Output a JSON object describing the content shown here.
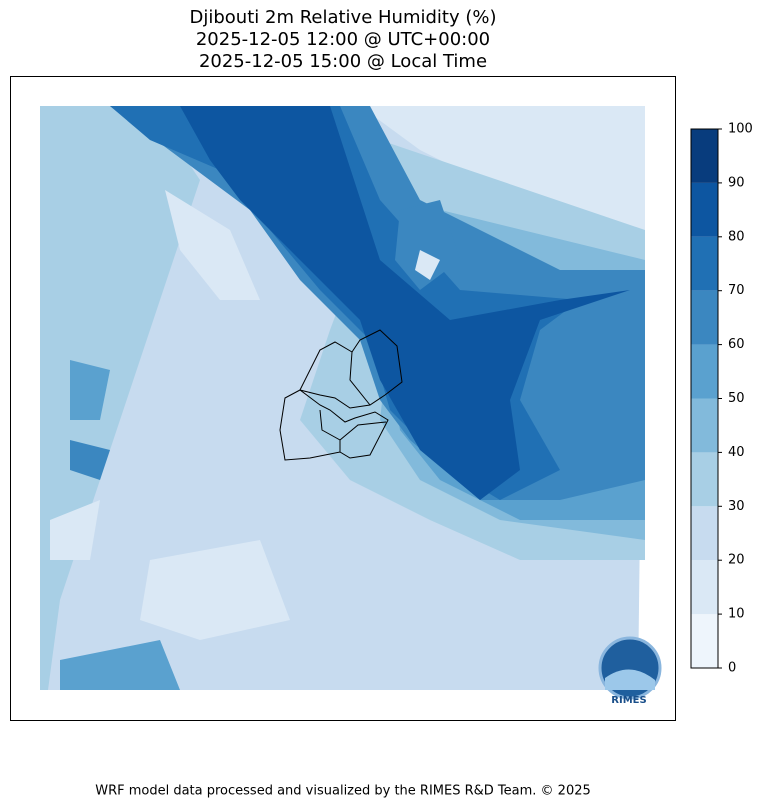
{
  "title": [
    "Djibouti 2m Relative Humidity (%)",
    "2025-12-05 12:00 @ UTC+00:00",
    "2025-12-05 15:00 @ Local Time"
  ],
  "colorbar": {
    "levels": [
      0,
      10,
      20,
      30,
      40,
      50,
      60,
      70,
      80,
      90,
      100
    ],
    "colors": [
      "#eef5fc",
      "#dae8f5",
      "#c7dbef",
      "#a8cfe5",
      "#82badb",
      "#5aa1cf",
      "#3b87c0",
      "#2070b4",
      "#0d56a1",
      "#083c7d"
    ]
  },
  "logo": "RIMES",
  "footer": "WRF model data processed and visualized by the RIMES R&D Team. © 2025"
}
